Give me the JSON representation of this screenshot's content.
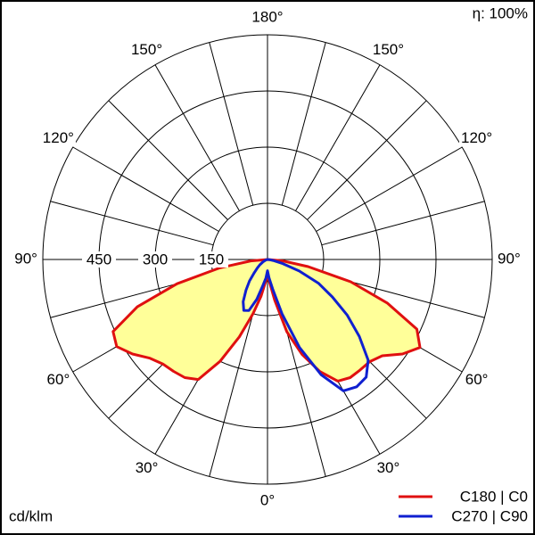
{
  "chart_data": {
    "type": "polar",
    "annotation": "η: 100%",
    "unit_label": "cd/klm",
    "rlim": [
      0,
      600
    ],
    "rticks": [
      150,
      300,
      450
    ],
    "angle_ticks": [
      {
        "value": -150,
        "label": "150°"
      },
      {
        "value": -120,
        "label": "120°"
      },
      {
        "value": -90,
        "label": "90°"
      },
      {
        "value": -60,
        "label": "60°"
      },
      {
        "value": -30,
        "label": "30°"
      },
      {
        "value": 0,
        "label": "0°"
      },
      {
        "value": 30,
        "label": "30°"
      },
      {
        "value": 60,
        "label": "60°"
      },
      {
        "value": 90,
        "label": "90°"
      },
      {
        "value": 120,
        "label": "120°"
      },
      {
        "value": 150,
        "label": "150°"
      },
      {
        "value": 180,
        "label": "180°"
      }
    ],
    "angle_grid": [
      0,
      15,
      30,
      45,
      60,
      75,
      90,
      105,
      120,
      135,
      150,
      165
    ],
    "x": [
      -90,
      -85,
      -80,
      -75,
      -70,
      -65,
      -60,
      -55,
      -50,
      -45,
      -40,
      -35,
      -30,
      -25,
      -20,
      -15,
      -10,
      -5,
      0,
      5,
      10,
      15,
      20,
      25,
      30,
      35,
      40,
      45,
      50,
      55,
      60,
      65,
      70,
      75,
      80,
      85,
      90
    ],
    "series": [
      {
        "name": "C180 | C0",
        "color": "#e01010",
        "fill": "#ffff99",
        "values": [
          0,
          45,
          130,
          250,
          370,
          455,
          465,
          440,
          410,
          395,
          390,
          385,
          370,
          300,
          220,
          150,
          100,
          60,
          40,
          60,
          110,
          200,
          270,
          330,
          375,
          385,
          385,
          386,
          400,
          440,
          470,
          440,
          340,
          230,
          110,
          40,
          0
        ]
      },
      {
        "name": "C270 | C90",
        "color": "#1020d0",
        "fill": "none",
        "values": [
          0,
          0,
          0,
          0,
          5,
          10,
          15,
          25,
          35,
          50,
          75,
          100,
          130,
          150,
          145,
          110,
          70,
          50,
          30,
          50,
          80,
          150,
          250,
          340,
          405,
          415,
          410,
          380,
          320,
          260,
          200,
          150,
          90,
          40,
          15,
          5,
          0
        ]
      }
    ]
  }
}
